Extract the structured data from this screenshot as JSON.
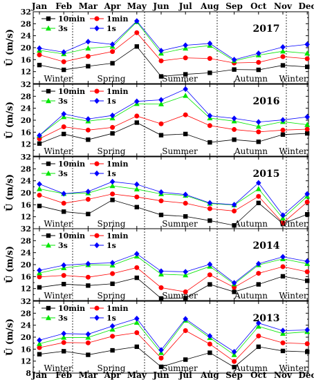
{
  "chart_data": [
    {
      "type": "line",
      "title": "2017",
      "ylabel": "Ū (m/s)",
      "xlabel": "",
      "categories": [
        "Jan",
        "Feb",
        "Mar",
        "Apr",
        "May",
        "Jun",
        "Jul",
        "Aug",
        "Sep",
        "Oct",
        "Nov",
        "Dec"
      ],
      "ylim": [
        8,
        32
      ],
      "yticks": [
        12,
        16,
        20,
        24,
        28,
        32
      ],
      "grid": "off",
      "legend_position": "top-left",
      "season_labels": [
        "Winter",
        "Spring",
        "Summer",
        "Autumn",
        "Winter"
      ],
      "series": [
        {
          "name": "10min",
          "values": [
            14.2,
            12.6,
            13.8,
            14.8,
            20.4,
            10.4,
            11.1,
            11.6,
            12.7,
            12.6,
            14.1,
            13.6
          ]
        },
        {
          "name": "1min",
          "values": [
            17.6,
            15.3,
            17.1,
            18.7,
            25.0,
            15.6,
            16.6,
            16.4,
            14.9,
            15.1,
            17.0,
            16.3
          ]
        },
        {
          "name": "3s",
          "values": [
            19.1,
            17.9,
            19.8,
            20.4,
            28.6,
            18.1,
            19.8,
            20.7,
            15.6,
            17.5,
            18.8,
            18.1
          ]
        },
        {
          "name": "1s",
          "values": [
            19.8,
            18.5,
            22.0,
            21.1,
            28.9,
            19.0,
            20.8,
            21.4,
            16.0,
            18.1,
            20.2,
            21.1
          ]
        }
      ]
    },
    {
      "type": "line",
      "title": "2016",
      "ylabel": "Ū (m/s)",
      "xlabel": "",
      "categories": [
        "Jan",
        "Feb",
        "Mar",
        "Apr",
        "May",
        "Jun",
        "Jul",
        "Aug",
        "Sep",
        "Oct",
        "Nov",
        "Dec"
      ],
      "ylim": [
        8,
        32
      ],
      "yticks": [
        12,
        16,
        20,
        24,
        28,
        32
      ],
      "grid": "off",
      "legend_position": "top-left",
      "season_labels": [
        "Winter",
        "Spring",
        "Summer",
        "Autumn",
        "Winter"
      ],
      "series": [
        {
          "name": "10min",
          "values": [
            12.2,
            15.4,
            13.5,
            15.6,
            19.2,
            15.0,
            15.4,
            12.6,
            13.5,
            12.8,
            15.2,
            15.6
          ]
        },
        {
          "name": "1min",
          "values": [
            13.8,
            17.8,
            16.7,
            17.6,
            21.4,
            18.8,
            21.8,
            18.2,
            16.9,
            16.1,
            16.7,
            17.0
          ]
        },
        {
          "name": "3s",
          "values": [
            14.9,
            21.1,
            19.7,
            20.7,
            25.5,
            25.4,
            28.2,
            20.7,
            19.7,
            17.9,
            19.5,
            18.5
          ]
        },
        {
          "name": "1s",
          "values": [
            14.9,
            22.1,
            20.4,
            21.6,
            26.3,
            26.8,
            30.4,
            21.5,
            20.6,
            19.4,
            20.1,
            21.1
          ]
        }
      ]
    },
    {
      "type": "line",
      "title": "2015",
      "ylabel": "Ū (m/s)",
      "xlabel": "",
      "categories": [
        "Jan",
        "Feb",
        "Mar",
        "Apr",
        "May",
        "Jun",
        "Jul",
        "Aug",
        "Sep",
        "Oct",
        "Nov",
        "Dec"
      ],
      "ylim": [
        8,
        32
      ],
      "yticks": [
        12,
        16,
        20,
        24,
        28,
        32
      ],
      "grid": "off",
      "legend_position": "top-left",
      "season_labels": [
        "Winter",
        "Spring",
        "Summer",
        "Autumn",
        "Winter"
      ],
      "series": [
        {
          "name": "10min",
          "values": [
            15.6,
            13.7,
            12.9,
            17.6,
            15.2,
            12.6,
            12.1,
            10.7,
            9.1,
            16.6,
            9.7,
            12.8
          ]
        },
        {
          "name": "1min",
          "values": [
            19.2,
            16.5,
            17.8,
            19.6,
            18.6,
            17.3,
            16.5,
            14.7,
            13.9,
            18.8,
            9.9,
            16.9
          ]
        },
        {
          "name": "3s",
          "values": [
            21.3,
            19.7,
            19.9,
            22.3,
            21.2,
            19.6,
            19.1,
            16.4,
            15.9,
            21.3,
            11.5,
            18.8
          ]
        },
        {
          "name": "1s",
          "values": [
            22.9,
            19.7,
            20.4,
            23.7,
            22.8,
            20.2,
            19.4,
            16.6,
            16.0,
            23.3,
            12.5,
            19.6
          ]
        }
      ]
    },
    {
      "type": "line",
      "title": "2014",
      "ylabel": "Ū (m/s)",
      "xlabel": "",
      "categories": [
        "Jan",
        "Feb",
        "Mar",
        "Apr",
        "May",
        "Jun",
        "Jul",
        "Aug",
        "Sep",
        "Oct",
        "Nov",
        "Dec"
      ],
      "ylim": [
        8,
        32
      ],
      "yticks": [
        12,
        16,
        20,
        24,
        28,
        32
      ],
      "grid": "off",
      "legend_position": "top-left",
      "season_labels": [
        "Winter",
        "Spring",
        "Summer",
        "Autumn",
        "Winter"
      ],
      "series": [
        {
          "name": "10min",
          "values": [
            12.4,
            13.5,
            13.0,
            13.6,
            15.6,
            8.7,
            8.8,
            13.4,
            10.9,
            13.4,
            16.1,
            14.6
          ]
        },
        {
          "name": "1min",
          "values": [
            15.9,
            16.4,
            15.8,
            17.0,
            19.0,
            12.3,
            10.9,
            16.6,
            12.4,
            17.1,
            19.3,
            17.6
          ]
        },
        {
          "name": "3s",
          "values": [
            17.2,
            18.9,
            19.9,
            19.8,
            22.8,
            16.8,
            16.5,
            19.4,
            13.5,
            19.9,
            21.9,
            20.3
          ]
        },
        {
          "name": "1s",
          "values": [
            18.1,
            19.8,
            20.3,
            20.6,
            23.6,
            17.8,
            17.6,
            20.1,
            13.9,
            20.3,
            22.6,
            21.1
          ]
        }
      ]
    },
    {
      "type": "line",
      "title": "2013",
      "ylabel": "Ū (m/s)",
      "xlabel": "",
      "categories": [
        "Jan",
        "Feb",
        "Mar",
        "Apr",
        "May",
        "Jun",
        "Jul",
        "Aug",
        "Sep",
        "Oct",
        "Nov",
        "Dec"
      ],
      "ylim": [
        8,
        32
      ],
      "yticks": [
        8,
        12,
        16,
        20,
        24,
        28,
        32
      ],
      "grid": "off",
      "legend_position": "top-left",
      "season_labels": [
        "Winter",
        "Spring",
        "Summer",
        "Autumn",
        "Winter"
      ],
      "series": [
        {
          "name": "10min",
          "values": [
            14.3,
            15.3,
            14.1,
            15.6,
            16.8,
            10.1,
            12.5,
            14.8,
            10.0,
            16.8,
            15.4,
            15.1
          ]
        },
        {
          "name": "1min",
          "values": [
            16.5,
            18.2,
            18.1,
            20.3,
            21.5,
            13.0,
            22.2,
            17.7,
            11.9,
            20.4,
            18.1,
            17.8
          ]
        },
        {
          "name": "3s",
          "values": [
            17.8,
            19.9,
            19.9,
            22.6,
            24.9,
            14.8,
            25.6,
            19.8,
            14.1,
            23.6,
            21.2,
            21.8
          ]
        },
        {
          "name": "1s",
          "values": [
            19.0,
            21.2,
            21.0,
            23.7,
            26.2,
            15.7,
            26.1,
            20.4,
            15.1,
            24.7,
            22.2,
            22.4
          ]
        }
      ]
    }
  ],
  "colors": {
    "10min": "#000000",
    "1min": "#ff0000",
    "3s": "#00e600",
    "1s": "#0000ff",
    "axis": "#000000",
    "divider": "#000000"
  },
  "markers": {
    "10min": "square",
    "1min": "circle",
    "3s": "triangle-up",
    "1s": "diamond"
  }
}
